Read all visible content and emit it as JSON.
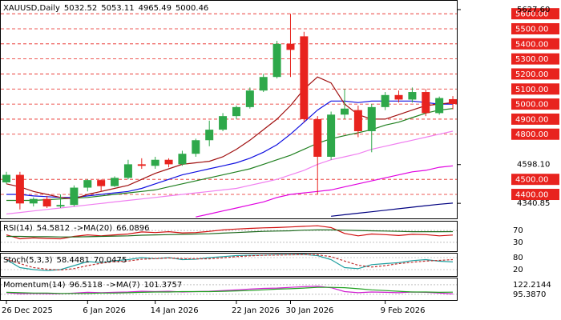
{
  "chart_data": [
    {
      "type": "candlestick",
      "title": "XAUUSD,Daily",
      "categories": [
        "26 Dec 2025",
        null,
        null,
        null,
        null,
        null,
        "6 Jan 2026",
        null,
        null,
        null,
        null,
        "14 Jan 2026",
        null,
        null,
        null,
        null,
        null,
        "22 Jan 2026",
        null,
        null,
        null,
        "30 Jan 2026",
        null,
        null,
        null,
        null,
        null,
        null,
        "9 Feb 2026",
        null,
        null,
        null,
        null,
        null
      ],
      "open": [
        4480,
        4530,
        4340,
        4370,
        4320,
        4330,
        4445,
        4495,
        4455,
        4510,
        4600,
        4590,
        4630,
        4600,
        4670,
        4760,
        4830,
        4920,
        4980,
        5090,
        5180,
        5400,
        5450,
        4900,
        4650,
        4930,
        4960,
        4820,
        4980,
        5060,
        5030,
        5080,
        4940,
        5032.52
      ],
      "high": [
        4550,
        4550,
        4380,
        4390,
        4400,
        4460,
        4500,
        4500,
        4520,
        4630,
        4640,
        4650,
        4640,
        4690,
        4770,
        4890,
        4940,
        4990,
        5110,
        5200,
        5420,
        5600,
        5480,
        4920,
        4950,
        5100,
        4990,
        5000,
        5080,
        5090,
        5110,
        5100,
        5050,
        5053.11
      ],
      "low": [
        4470,
        4300,
        4320,
        4310,
        4310,
        4320,
        4420,
        4420,
        4450,
        4500,
        4570,
        4570,
        4580,
        4590,
        4650,
        4720,
        4820,
        4900,
        4970,
        5080,
        5170,
        5180,
        4880,
        4400,
        4630,
        4900,
        4780,
        4680,
        4960,
        5010,
        5010,
        4920,
        4930,
        4965.49
      ],
      "close": [
        4530,
        4340,
        4370,
        4320,
        4330,
        4445,
        4495,
        4455,
        4510,
        4600,
        4590,
        4630,
        4600,
        4670,
        4760,
        4830,
        4920,
        4980,
        5090,
        5180,
        5400,
        5360,
        4900,
        4650,
        4930,
        4970,
        4820,
        4980,
        5060,
        5030,
        5080,
        4940,
        5040,
        5000.46
      ],
      "up_color": "#2ea84a",
      "down_color": "#e8231e",
      "ylim": [
        4246,
        5670
      ],
      "yticks": [
        {
          "value": 5627.6,
          "label": "5627.60"
        },
        {
          "value": 4598.1,
          "label": "4598.10"
        },
        {
          "value": 4340.85,
          "label": "4340.85"
        }
      ],
      "levels": {
        "color": "#e8231e",
        "values": [
          {
            "value": 5600,
            "label": "5600.00"
          },
          {
            "value": 5500,
            "label": "5500.00"
          },
          {
            "value": 5400,
            "label": "5400.00"
          },
          {
            "value": 5300,
            "label": "5300.00"
          },
          {
            "value": 5200,
            "label": "5200.00"
          },
          {
            "value": 5100,
            "label": "5100.00"
          },
          {
            "value": 5000,
            "label": "5000.00"
          },
          {
            "value": 4900,
            "label": "4900.00"
          },
          {
            "value": 4800,
            "label": "4800.00"
          },
          {
            "value": 4500,
            "label": "4500.00"
          },
          {
            "value": 4400,
            "label": "4400.00"
          }
        ]
      },
      "series": [
        {
          "color": "#f080f0",
          "values": [
            4270,
            4280,
            4290,
            4300,
            4310,
            4320,
            4330,
            4340,
            4350,
            4360,
            4370,
            4380,
            4390,
            4400,
            4410,
            4420,
            4430,
            4440,
            4460,
            4480,
            4500,
            4530,
            4560,
            4600,
            4630,
            4650,
            4670,
            4700,
            4720,
            4740,
            4760,
            4780,
            4800,
            4820
          ]
        },
        {
          "color": "#e000e0",
          "values": [
            null,
            null,
            null,
            null,
            null,
            null,
            null,
            null,
            null,
            null,
            null,
            null,
            null,
            null,
            4250,
            4270,
            4290,
            4310,
            4330,
            4350,
            4380,
            4400,
            4410,
            4420,
            4430,
            4450,
            4470,
            4490,
            4510,
            4530,
            4550,
            4560,
            4580,
            4590
          ]
        },
        {
          "color": "#000080",
          "values": [
            null,
            null,
            null,
            null,
            null,
            null,
            null,
            null,
            null,
            null,
            null,
            null,
            null,
            null,
            null,
            null,
            null,
            null,
            null,
            null,
            null,
            null,
            null,
            null,
            4255,
            4265,
            4275,
            4285,
            4295,
            4305,
            4315,
            4325,
            4335,
            4342
          ]
        },
        {
          "color": "#208020",
          "values": [
            4360,
            4360,
            4360,
            4365,
            4370,
            4375,
            4380,
            4390,
            4400,
            4410,
            4420,
            4430,
            4450,
            4470,
            4490,
            4510,
            4530,
            4550,
            4570,
            4600,
            4630,
            4660,
            4700,
            4740,
            4770,
            4790,
            4810,
            4830,
            4860,
            4880,
            4910,
            4940,
            4960,
            4970
          ]
        },
        {
          "color": "#1010e0",
          "values": [
            4400,
            4400,
            4390,
            4385,
            4380,
            4380,
            4390,
            4400,
            4410,
            4420,
            4440,
            4470,
            4500,
            4530,
            4550,
            4570,
            4590,
            4610,
            4640,
            4680,
            4730,
            4800,
            4880,
            4960,
            5020,
            5020,
            5010,
            5020,
            5020,
            5020,
            5020,
            5010,
            5000,
            5000
          ]
        },
        {
          "color": "#a01010",
          "values": [
            4470,
            4450,
            4420,
            4400,
            4380,
            4370,
            4400,
            4420,
            4440,
            4460,
            4500,
            4540,
            4570,
            4600,
            4610,
            4620,
            4650,
            4700,
            4760,
            4830,
            4900,
            4990,
            5100,
            5180,
            5140,
            5000,
            4930,
            4900,
            4900,
            4930,
            4960,
            4990,
            5000,
            5010
          ]
        }
      ]
    },
    {
      "type": "line",
      "ylim": [
        0,
        100
      ],
      "yticks": [
        30,
        70
      ],
      "series": [
        {
          "name": "RSI(14)",
          "color": "#d01010",
          "values": [
            55,
            42,
            45,
            43,
            42,
            50,
            55,
            52,
            55,
            58,
            65,
            63,
            66,
            62,
            63,
            67,
            72,
            75,
            77,
            79,
            80,
            82,
            84,
            86,
            80,
            60,
            52,
            58,
            56,
            53,
            57,
            56,
            52,
            54.5812
          ]
        },
        {
          "name": "->MA(20)",
          "color": "#1e6a1e",
          "values": [
            50,
            50,
            49,
            49,
            48,
            48,
            49,
            50,
            51,
            52,
            54,
            55,
            56,
            57,
            58,
            59,
            61,
            63,
            65,
            67,
            68,
            69,
            71,
            72,
            72,
            71,
            70,
            69,
            68,
            67,
            66,
            66,
            66,
            66.0896
          ]
        }
      ]
    },
    {
      "type": "line",
      "ylim": [
        0,
        100
      ],
      "yticks": [
        20,
        80
      ],
      "series": [
        {
          "name": "Stoch(5,3,3)",
          "color": "#20a0a0",
          "values": [
            70,
            30,
            20,
            15,
            20,
            40,
            60,
            55,
            65,
            70,
            80,
            75,
            80,
            70,
            72,
            80,
            85,
            90,
            92,
            93,
            95,
            95,
            96,
            90,
            70,
            30,
            25,
            45,
            50,
            55,
            65,
            70,
            62,
            58.4481
          ]
        },
        {
          "color": "#c03030",
          "dashed": true,
          "values": [
            72,
            50,
            30,
            22,
            18,
            25,
            40,
            52,
            60,
            63,
            72,
            75,
            78,
            75,
            74,
            74,
            79,
            85,
            89,
            92,
            93,
            94,
            95,
            94,
            85,
            63,
            42,
            33,
            40,
            50,
            57,
            63,
            66,
            70.0475
          ]
        }
      ]
    },
    {
      "type": "line",
      "ylim": [
        84,
        140
      ],
      "yticks": [
        {
          "value": 122.2144,
          "label": "122.2144"
        },
        {
          "value": 95.387,
          "label": "95.3870"
        }
      ],
      "series": [
        {
          "name": "Momentum(14)",
          "color": "#d020d0",
          "values": [
            100,
            97,
            98,
            97,
            97,
            99,
            101,
            100,
            101,
            102,
            104,
            103,
            104,
            102,
            103,
            104,
            106,
            108,
            110,
            112,
            113,
            115,
            117,
            118,
            114,
            103,
            100,
            102,
            101,
            100,
            102,
            101,
            99,
            96.5118
          ]
        },
        {
          "name": "->MA(7)",
          "color": "#20a020",
          "values": [
            101,
            100,
            99,
            99,
            98,
            98,
            98,
            99,
            99,
            100,
            101,
            102,
            102,
            103,
            103,
            103,
            104,
            105,
            106,
            108,
            110,
            111,
            113,
            115,
            115,
            114,
            111,
            108,
            106,
            104,
            102,
            102,
            101,
            101.3757
          ]
        }
      ]
    }
  ]
}
